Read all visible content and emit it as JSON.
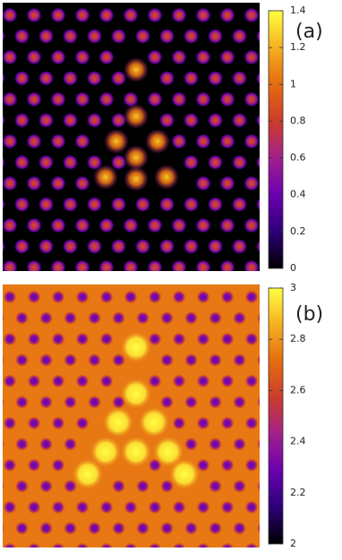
{
  "chart_data": [
    {
      "type": "heatmap",
      "annotation": "(a)",
      "clim": [
        0,
        1.4
      ],
      "cticks": [
        0,
        0.2,
        0.4,
        0.6,
        0.8,
        1,
        1.2,
        1.4
      ],
      "colormap": [
        "#000000",
        "#2c0078",
        "#6a00b0",
        "#a2208c",
        "#cc3c2a",
        "#e46c10",
        "#f5b020",
        "#ffff40"
      ]
    },
    {
      "type": "heatmap",
      "annotation": "(b)",
      "clim": [
        2,
        3
      ],
      "cticks": [
        2,
        2.2,
        2.4,
        2.6,
        2.8,
        3
      ],
      "colormap": [
        "#000000",
        "#2c0078",
        "#6a00b0",
        "#a2208c",
        "#cc3c2a",
        "#e46c10",
        "#f5b020",
        "#ffff40"
      ]
    }
  ]
}
